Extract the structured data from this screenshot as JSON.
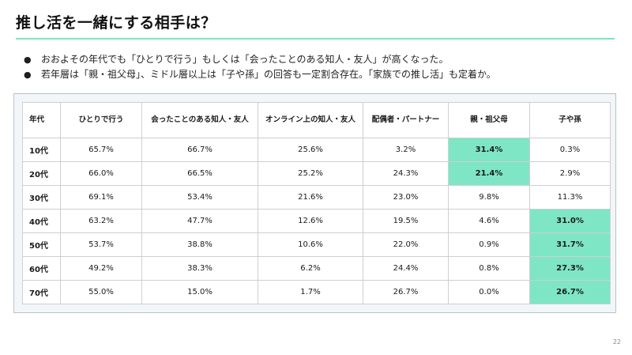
{
  "title": "推し活を一緒にする相手は？",
  "bullets": [
    "おおよその年代でも「ひとりで行う」もしくは「会ったことのある知人・友人」が高くなった。",
    "若年層は「親・祖父母」、ミドル層以上は「子や孫」の回答も一定割合存在。「家族での推し活」も定着か。"
  ],
  "colors": {
    "accent": "#7ee6b8",
    "highlight": "#7ee6c4"
  },
  "table": {
    "headers": [
      "年代",
      "ひとりで行う",
      "会ったことのある知人・友人",
      "オンライン上の知人・友人",
      "配偶者・パートナー",
      "親・祖父母",
      "子や孫"
    ],
    "rows": [
      {
        "label": "10代",
        "values": [
          "65.7%",
          "66.7%",
          "25.6%",
          "3.2%",
          "31.4%",
          "0.3%"
        ],
        "highlight": [
          4
        ]
      },
      {
        "label": "20代",
        "values": [
          "66.0%",
          "66.5%",
          "25.2%",
          "24.3%",
          "21.4%",
          "2.9%"
        ],
        "highlight": [
          4
        ]
      },
      {
        "label": "30代",
        "values": [
          "69.1%",
          "53.4%",
          "21.6%",
          "23.0%",
          "9.8%",
          "11.3%"
        ],
        "highlight": []
      },
      {
        "label": "40代",
        "values": [
          "63.2%",
          "47.7%",
          "12.6%",
          "19.5%",
          "4.6%",
          "31.0%"
        ],
        "highlight": [
          5
        ]
      },
      {
        "label": "50代",
        "values": [
          "53.7%",
          "38.8%",
          "10.6%",
          "22.0%",
          "0.9%",
          "31.7%"
        ],
        "highlight": [
          5
        ]
      },
      {
        "label": "60代",
        "values": [
          "49.2%",
          "38.3%",
          "6.2%",
          "24.4%",
          "0.8%",
          "27.3%"
        ],
        "highlight": [
          5
        ]
      },
      {
        "label": "70代",
        "values": [
          "55.0%",
          "15.0%",
          "1.7%",
          "26.7%",
          "0.0%",
          "26.7%"
        ],
        "highlight": [
          5
        ]
      }
    ]
  },
  "page_number": "22"
}
